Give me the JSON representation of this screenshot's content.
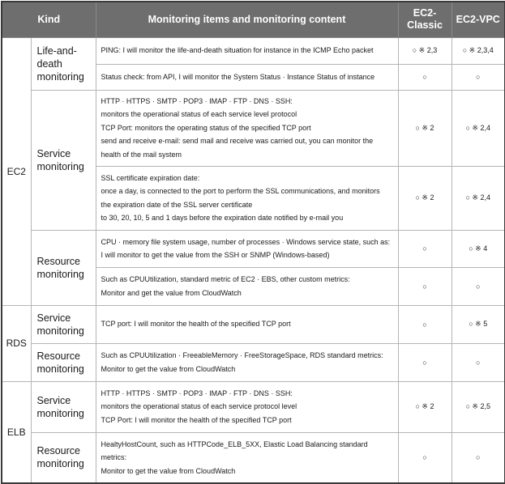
{
  "header": {
    "kind": "Kind",
    "items": "Monitoring items and monitoring content",
    "classic_line1": "EC2-",
    "classic_line2": "Classic",
    "vpc": "EC2-VPC"
  },
  "ec2": {
    "service": "EC2",
    "life": {
      "kind_line1": "Life-and-",
      "kind_line2": "death",
      "kind_line3": "monitoring",
      "ping": {
        "line1": "PING: I will monitor the life-and-death situation for instance in the ICMP Echo packet",
        "classic": "○ ※ 2,3",
        "vpc": "○ ※ 2,3,4"
      },
      "status": {
        "line1": "Status check: from API, I will monitor the System Status · Instance Status of instance",
        "classic": "○",
        "vpc": "○"
      }
    },
    "service_mon": {
      "kind_line1": "Service",
      "kind_line2": "monitoring",
      "protocols": {
        "line1": "HTTP · HTTPS · SMTP · POP3 · IMAP · FTP · DNS · SSH:",
        "line2": "monitors the operational status of each service level protocol",
        "line3": "TCP Port: monitors the operating status of the specified TCP port",
        "line4": "send and receive e-mail: send mail and receive was carried out, you can monitor the",
        "line5": "health of the mail system",
        "classic": "○ ※ 2",
        "vpc": "○ ※ 2,4"
      },
      "ssl": {
        "line1": "SSL certificate expiration date:",
        "line2": "once a day, is connected to the port to perform the SSL communications, and monitors",
        "line3": "the expiration date of the SSL server certificate",
        "line4": "to 30, 20, 10, 5 and 1 days before the expiration date notified by e-mail you",
        "classic": "○ ※ 2",
        "vpc": "○ ※ 2,4"
      }
    },
    "resource": {
      "kind_line1": "Resource",
      "kind_line2": "monitoring",
      "cpu": {
        "line1": "CPU · memory file system usage, number of processes · Windows service state, such as:",
        "line2": "I will monitor to get the value from the SSH or SNMP (Windows-based)",
        "classic": "○",
        "vpc": "○ ※ 4"
      },
      "cloudwatch": {
        "line1": "Such as CPUUtilization, standard metric of EC2 · EBS, other custom metrics:",
        "line2": "Monitor and get the value from CloudWatch",
        "classic": "○",
        "vpc": "○"
      }
    }
  },
  "rds": {
    "service": "RDS",
    "service_mon": {
      "kind_line1": "Service",
      "kind_line2": "monitoring",
      "line1": "TCP port: I will monitor the health of the specified TCP port",
      "classic": "○",
      "vpc": "○ ※ 5"
    },
    "resource": {
      "kind_line1": "Resource",
      "kind_line2": "monitoring",
      "line1": "Such as CPUUtilization · FreeableMemory · FreeStorageSpace, RDS standard metrics:",
      "line2": "Monitor to get the value from CloudWatch",
      "classic": "○",
      "vpc": "○"
    }
  },
  "elb": {
    "service": "ELB",
    "service_mon": {
      "kind_line1": "Service",
      "kind_line2": "monitoring",
      "line1": "HTTP · HTTPS · SMTP · POP3 · IMAP · FTP · DNS · SSH:",
      "line2": "monitors the operational status of each service protocol level",
      "line3": "TCP Port: I will monitor the health of the specified TCP port",
      "classic": "○ ※ 2",
      "vpc": "○ ※ 2,5"
    },
    "resource": {
      "kind_line1": "Resource",
      "kind_line2": "monitoring",
      "line1": "HealtyHostCount, such as HTTPCode_ELB_5XX, Elastic Load Balancing standard",
      "line2": "metrics:",
      "line3": "Monitor to get the value from CloudWatch",
      "classic": "○",
      "vpc": "○"
    }
  }
}
